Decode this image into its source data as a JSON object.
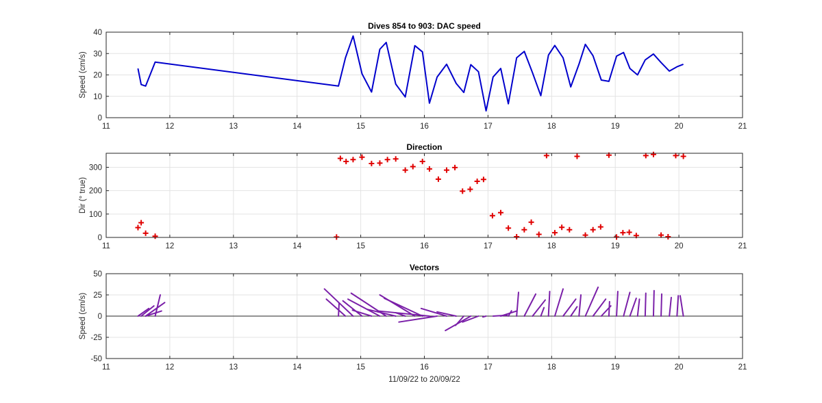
{
  "figure": {
    "background": "#ffffff",
    "grid_color": "#e3e3e3",
    "axis_color": "#262626"
  },
  "chart_data": [
    {
      "type": "line",
      "title": "Dives 854 to 903: DAC speed",
      "xlabel": "",
      "ylabel": "Speed (cm/s)",
      "xlim": [
        11,
        21
      ],
      "ylim": [
        0,
        40
      ],
      "xticks": [
        11,
        12,
        13,
        14,
        15,
        16,
        17,
        18,
        19,
        20,
        21
      ],
      "yticks": [
        0,
        10,
        20,
        30,
        40
      ],
      "grid": true,
      "color": "#0000cc",
      "series": [
        {
          "x": [
            11.5,
            11.55,
            11.62,
            11.77,
            14.65,
            14.76,
            14.88,
            15.02,
            15.17,
            15.3,
            15.4,
            15.55,
            15.7,
            15.85,
            15.97,
            16.08,
            16.2,
            16.35,
            16.5,
            16.62,
            16.73,
            16.85,
            16.97,
            17.08,
            17.2,
            17.32,
            17.45,
            17.57,
            17.7,
            17.83,
            17.95,
            18.05,
            18.18,
            18.3,
            18.43,
            18.53,
            18.65,
            18.78,
            18.9,
            19.02,
            19.13,
            19.23,
            19.35,
            19.47,
            19.6,
            19.72,
            19.85,
            19.97,
            20.07
          ],
          "y": [
            23,
            15.5,
            14.8,
            26,
            14.8,
            28,
            38.2,
            20.5,
            12,
            32,
            35.2,
            15.7,
            9.7,
            33.7,
            30.8,
            6.8,
            19,
            25,
            16,
            11.8,
            24.8,
            21.5,
            3.2,
            19,
            23,
            6.5,
            28,
            31,
            21,
            10.3,
            29.3,
            33.8,
            28,
            14.4,
            25,
            34.3,
            29,
            17.6,
            17,
            28.8,
            30.5,
            23,
            20,
            27,
            29.8,
            25.8,
            21.8,
            23.8,
            25
          ]
        }
      ]
    },
    {
      "type": "scatter",
      "title": "Direction",
      "xlabel": "",
      "ylabel": "Dir (° true)",
      "xlim": [
        11,
        21
      ],
      "ylim": [
        0,
        360
      ],
      "xticks": [
        11,
        12,
        13,
        14,
        15,
        16,
        17,
        18,
        19,
        20,
        21
      ],
      "yticks": [
        0,
        100,
        200,
        300
      ],
      "grid": true,
      "marker": "+",
      "color": "#e00000",
      "series": [
        {
          "x": [
            11.5,
            11.55,
            11.62,
            11.77,
            14.62,
            14.68,
            14.77,
            14.88,
            15.02,
            15.17,
            15.3,
            15.42,
            15.55,
            15.7,
            15.82,
            15.97,
            16.08,
            16.22,
            16.35,
            16.48,
            16.6,
            16.72,
            16.83,
            16.93,
            17.07,
            17.2,
            17.32,
            17.45,
            17.57,
            17.68,
            17.8,
            17.92,
            18.05,
            18.16,
            18.28,
            18.4,
            18.53,
            18.65,
            18.77,
            18.9,
            19.02,
            19.12,
            19.22,
            19.33,
            19.48,
            19.6,
            19.72,
            19.83,
            19.95,
            20.07
          ],
          "y": [
            42,
            63,
            18,
            5,
            2,
            338,
            325,
            333,
            343,
            316,
            318,
            333,
            336,
            288,
            303,
            325,
            293,
            249,
            288,
            299,
            198,
            206,
            240,
            248,
            93,
            106,
            40,
            3,
            33,
            65,
            13,
            350,
            20,
            43,
            33,
            347,
            10,
            33,
            45,
            352,
            2,
            20,
            22,
            8,
            350,
            355,
            10,
            3,
            350,
            347
          ]
        }
      ]
    },
    {
      "type": "vector",
      "title": "Vectors",
      "xlabel": "11/09/22 to 20/09/22",
      "ylabel": "Speed (cm/s)",
      "xlim": [
        11,
        21
      ],
      "ylim": [
        -50,
        50
      ],
      "xticks": [
        11,
        12,
        13,
        14,
        15,
        16,
        17,
        18,
        19,
        20,
        21
      ],
      "yticks": [
        -50,
        -25,
        0,
        25,
        50
      ],
      "grid": true,
      "color": "#7a1fa8",
      "vectors": [
        {
          "x": 11.5,
          "dx": 0.17,
          "dy": 9
        },
        {
          "x": 11.55,
          "dx": 0.2,
          "dy": 12
        },
        {
          "x": 11.62,
          "dx": 0.25,
          "dy": 6
        },
        {
          "x": 11.77,
          "dx": 0.08,
          "dy": 25
        },
        {
          "x": 11.62,
          "dx": 0.3,
          "dy": 16
        },
        {
          "x": 14.65,
          "dx": 0.01,
          "dy": 15
        },
        {
          "x": 14.76,
          "dx": -0.3,
          "dy": 20
        },
        {
          "x": 14.88,
          "dx": -0.45,
          "dy": 32
        },
        {
          "x": 15.02,
          "dx": -0.3,
          "dy": 18
        },
        {
          "x": 15.17,
          "dx": -0.3,
          "dy": 7
        },
        {
          "x": 15.3,
          "dx": -0.5,
          "dy": 20
        },
        {
          "x": 15.4,
          "dx": -0.55,
          "dy": 27
        },
        {
          "x": 15.55,
          "dx": -0.45,
          "dy": 8
        },
        {
          "x": 15.7,
          "dx": -0.15,
          "dy": 4
        },
        {
          "x": 15.85,
          "dx": -0.55,
          "dy": 25
        },
        {
          "x": 15.97,
          "dx": -0.6,
          "dy": 21
        },
        {
          "x": 16.08,
          "dx": -0.8,
          "dy": 6
        },
        {
          "x": 16.2,
          "dx": -0.6,
          "dy": -7
        },
        {
          "x": 16.35,
          "dx": -0.4,
          "dy": 9
        },
        {
          "x": 16.5,
          "dx": -0.3,
          "dy": 5
        },
        {
          "x": 16.62,
          "dx": -0.13,
          "dy": -11
        },
        {
          "x": 16.73,
          "dx": -0.4,
          "dy": -17
        },
        {
          "x": 16.85,
          "dx": -0.25,
          "dy": -7
        },
        {
          "x": 16.97,
          "dx": -0.05,
          "dy": -1
        },
        {
          "x": 17.08,
          "dx": 0.22,
          "dy": 1
        },
        {
          "x": 17.2,
          "dx": 0.25,
          "dy": 6
        },
        {
          "x": 17.32,
          "dx": 0.05,
          "dy": 6.3
        },
        {
          "x": 17.45,
          "dx": 0.03,
          "dy": 28
        },
        {
          "x": 17.57,
          "dx": 0.18,
          "dy": 26
        },
        {
          "x": 17.7,
          "dx": 0.2,
          "dy": 19
        },
        {
          "x": 17.83,
          "dx": 0.05,
          "dy": 10
        },
        {
          "x": 17.95,
          "dx": 0.02,
          "dy": 29
        },
        {
          "x": 18.05,
          "dx": 0.13,
          "dy": 32
        },
        {
          "x": 18.18,
          "dx": 0.2,
          "dy": 20
        },
        {
          "x": 18.3,
          "dx": 0.1,
          "dy": 11
        },
        {
          "x": 18.43,
          "dx": 0.03,
          "dy": 25
        },
        {
          "x": 18.53,
          "dx": 0.2,
          "dy": 34
        },
        {
          "x": 18.65,
          "dx": 0.2,
          "dy": 20
        },
        {
          "x": 18.78,
          "dx": 0.15,
          "dy": 12
        },
        {
          "x": 18.9,
          "dx": 0.01,
          "dy": 17
        },
        {
          "x": 19.02,
          "dx": 0.02,
          "dy": 29
        },
        {
          "x": 19.13,
          "dx": 0.1,
          "dy": 28
        },
        {
          "x": 19.23,
          "dx": 0.1,
          "dy": 21
        },
        {
          "x": 19.35,
          "dx": 0.03,
          "dy": 20
        },
        {
          "x": 19.47,
          "dx": 0.01,
          "dy": 27
        },
        {
          "x": 19.6,
          "dx": 0.01,
          "dy": 30
        },
        {
          "x": 19.72,
          "dx": 0.01,
          "dy": 26
        },
        {
          "x": 19.85,
          "dx": 0.03,
          "dy": 22
        },
        {
          "x": 19.97,
          "dx": 0.02,
          "dy": 24
        },
        {
          "x": 20.07,
          "dx": -0.05,
          "dy": 24
        }
      ]
    }
  ]
}
